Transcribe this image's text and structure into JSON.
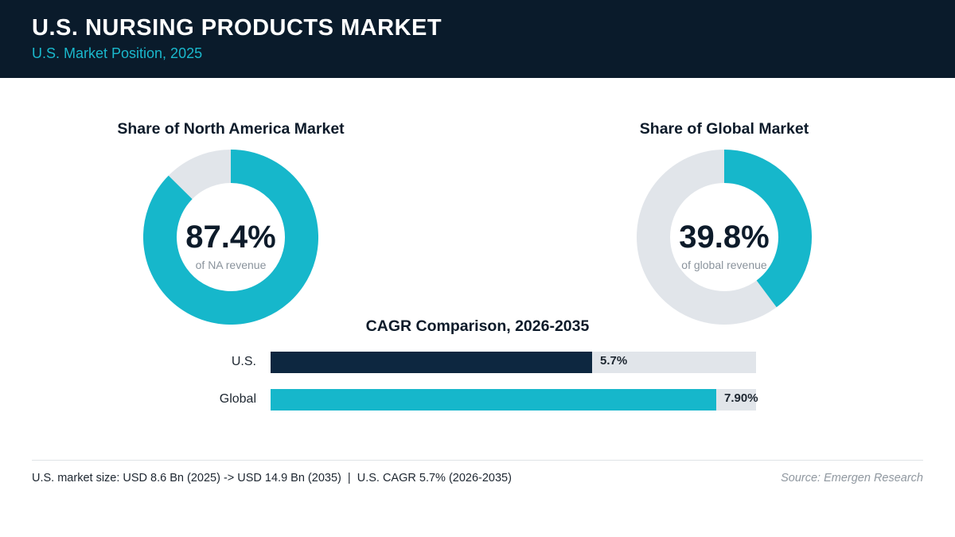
{
  "header": {
    "title": "U.S. NURSING PRODUCTS MARKET",
    "subtitle": "U.S. Market Position, 2025"
  },
  "colors": {
    "header_bg": "#0a1b2b",
    "accent": "#16b7cb",
    "track": "#e1e5ea",
    "us_bar": "#0d2740",
    "global_bar": "#16b7cb"
  },
  "chart_data": [
    {
      "type": "pie",
      "title": "Share of North America Market",
      "value": 87.4,
      "value_label": "87.4%",
      "caption": "of NA revenue"
    },
    {
      "type": "pie",
      "title": "Share of Global Market",
      "value": 39.8,
      "value_label": "39.8%",
      "caption": "of global revenue"
    },
    {
      "type": "bar",
      "title": "CAGR Comparison, 2026-2035",
      "categories": [
        "U.S.",
        "Global"
      ],
      "values": [
        5.7,
        7.9
      ],
      "value_labels": [
        "5.7%",
        "7.90%"
      ],
      "xlim": [
        0,
        8.6
      ]
    }
  ],
  "footer": {
    "note": "U.S. market size: USD 8.6 Bn (2025) -> USD 14.9 Bn (2035)  |  U.S. CAGR 5.7% (2026-2035)",
    "source": "Source: Emergen Research"
  }
}
